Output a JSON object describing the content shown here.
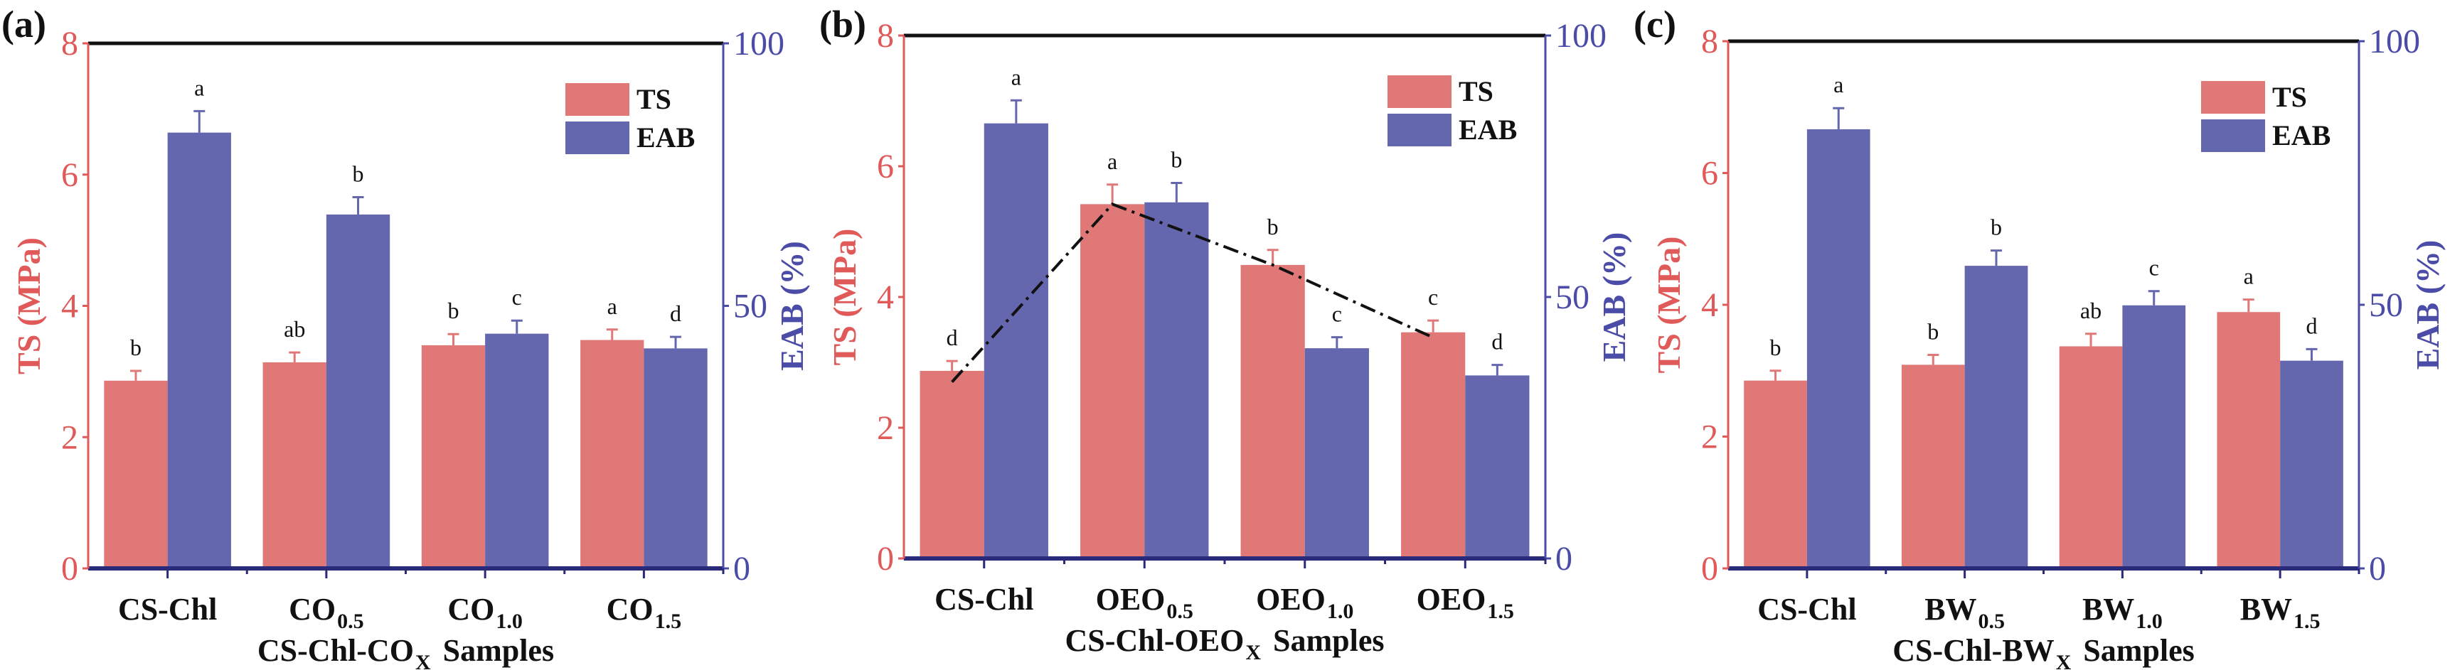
{
  "colors": {
    "ts": "#e07878",
    "eab": "#6466ae",
    "ts_axis": "#e05a5a",
    "eab_axis": "#4b4ba8",
    "frame": "#111111"
  },
  "chart_data": [
    {
      "type": "bar",
      "panel_label": "(a)",
      "categories": [
        {
          "base": "CS-Chl",
          "sub": ""
        },
        {
          "base": "CO",
          "sub": "0.5"
        },
        {
          "base": "CO",
          "sub": "1.0"
        },
        {
          "base": "CO",
          "sub": "1.5"
        }
      ],
      "xlabel": {
        "pre": "CS-Chl-CO",
        "sub": "X",
        "post": " Samples"
      },
      "ylabel_left": "TS (MPa)",
      "ylim_left": [
        0,
        8
      ],
      "yticks_left": [
        "0",
        "2",
        "4",
        "6",
        "8"
      ],
      "ylabel_right": "EAB (%)",
      "ylim_right": [
        0,
        100
      ],
      "yticks_right": [
        "0",
        "50",
        "100"
      ],
      "legend": {
        "placement": "top-right",
        "entries": [
          "TS",
          "EAB"
        ]
      },
      "grid": false,
      "series": [
        {
          "name": "TS",
          "axis": "left",
          "values": [
            2.86,
            3.14,
            3.4,
            3.48
          ],
          "errors": [
            0.15,
            0.15,
            0.17,
            0.16
          ],
          "letters": [
            "b",
            "ab",
            "b",
            "a"
          ]
        },
        {
          "name": "EAB",
          "axis": "right",
          "values": [
            83.0,
            67.4,
            44.7,
            41.9
          ],
          "errors": [
            4.1,
            3.3,
            2.5,
            2.2
          ],
          "letters": [
            "a",
            "b",
            "c",
            "d"
          ]
        }
      ]
    },
    {
      "type": "bar",
      "panel_label": "(b)",
      "categories": [
        {
          "base": "CS-Chl",
          "sub": ""
        },
        {
          "base": "OEO",
          "sub": "0.5"
        },
        {
          "base": "OEO",
          "sub": "1.0"
        },
        {
          "base": "OEO",
          "sub": "1.5"
        }
      ],
      "xlabel": {
        "pre": "CS-Chl-OEO",
        "sub": "X",
        "post": " Samples"
      },
      "ylabel_left": "TS (MPa)",
      "ylim_left": [
        0,
        8
      ],
      "yticks_left": [
        "0",
        "2",
        "4",
        "6",
        "8"
      ],
      "ylabel_right": "EAB (%)",
      "ylim_right": [
        0,
        100
      ],
      "yticks_right": [
        "0",
        "50",
        "100"
      ],
      "legend": {
        "placement": "top-right",
        "entries": [
          "TS",
          "EAB"
        ]
      },
      "grid": false,
      "series": [
        {
          "name": "TS",
          "axis": "left",
          "values": [
            2.87,
            5.42,
            4.49,
            3.46
          ],
          "errors": [
            0.15,
            0.3,
            0.23,
            0.18
          ],
          "letters": [
            "d",
            "a",
            "b",
            "c"
          ]
        },
        {
          "name": "EAB",
          "axis": "right",
          "values": [
            83.2,
            68.1,
            40.2,
            35.0
          ],
          "errors": [
            4.4,
            3.7,
            2.1,
            2.0
          ],
          "letters": [
            "a",
            "b",
            "c",
            "d"
          ]
        }
      ],
      "trend_line": {
        "style": "dash-dot",
        "axis": "left",
        "values": [
          2.7,
          5.42,
          4.49,
          3.38
        ]
      }
    },
    {
      "type": "bar",
      "panel_label": "(c)",
      "categories": [
        {
          "base": "CS-Chl",
          "sub": ""
        },
        {
          "base": "BW",
          "sub": "0.5"
        },
        {
          "base": "BW",
          "sub": "1.0"
        },
        {
          "base": "BW",
          "sub": "1.5"
        }
      ],
      "xlabel": {
        "pre": "CS-Chl-BW",
        "sub": "X",
        "post": " Samples"
      },
      "ylabel_left": "TS (MPa)",
      "ylim_left": [
        0,
        8
      ],
      "yticks_left": [
        "0",
        "2",
        "4",
        "6",
        "8"
      ],
      "ylabel_right": "EAB (%)",
      "ylim_right": [
        0,
        100
      ],
      "yticks_right": [
        "0",
        "50",
        "100"
      ],
      "legend": {
        "placement": "top-right",
        "entries": [
          "TS",
          "EAB"
        ]
      },
      "grid": false,
      "series": [
        {
          "name": "TS",
          "axis": "left",
          "values": [
            2.85,
            3.09,
            3.37,
            3.89
          ],
          "errors": [
            0.15,
            0.15,
            0.19,
            0.19
          ],
          "letters": [
            "b",
            "b",
            "ab",
            "a"
          ]
        },
        {
          "name": "EAB",
          "axis": "right",
          "values": [
            83.3,
            57.4,
            49.9,
            39.4
          ],
          "errors": [
            4.0,
            2.9,
            2.7,
            2.2
          ],
          "letters": [
            "a",
            "b",
            "c",
            "d"
          ]
        }
      ]
    }
  ]
}
